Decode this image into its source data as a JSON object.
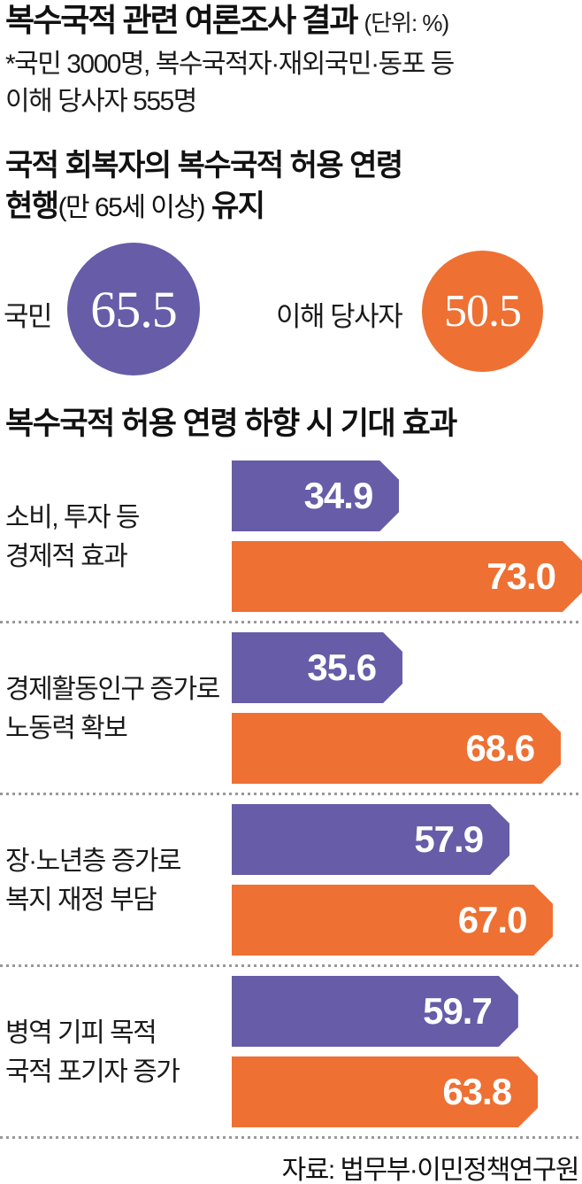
{
  "title": {
    "text": "복수국적 관련 여론조사 결과",
    "unit": "(단위: %)"
  },
  "subtitle": {
    "line1": "*국민 3000명, 복수국적자·재외국민·동포 등",
    "line2": "이해 당사자 555명"
  },
  "section1": {
    "heading_line1": "국적 회복자의 복수국적 허용 연령",
    "heading_line2_bold1": "현행",
    "heading_line2_paren": "(만 65세 이상)",
    "heading_line2_bold2": "유지"
  },
  "section2": {
    "heading": "복수국적 허용 연령 하향 시 기대 효과"
  },
  "source": "자료: 법무부·이민정책연구원",
  "colors": {
    "purple": "#665CA8",
    "orange": "#EE7033",
    "text": "#141414",
    "dots": "#999999"
  },
  "chart_data": [
    {
      "type": "bar",
      "variant": "proportional-circles",
      "title": "국적 회복자의 복수국적 허용 연령 현행(만 65세 이상) 유지",
      "categories": [
        "국민",
        "이해 당사자"
      ],
      "values": [
        65.5,
        50.5
      ],
      "unit": "%",
      "colors": [
        "#665CA8",
        "#EE7033"
      ],
      "legend": "none",
      "grid": false
    },
    {
      "type": "bar",
      "orientation": "horizontal",
      "title": "복수국적 허용 연령 하향 시 기대 효과",
      "categories": [
        "소비, 투자 등 경제적 효과",
        "경제활동인구 증가로 노동력 확보",
        "장·노년층 증가로 복지 재정 부담",
        "병역 기피 목적 국적 포기자 증가"
      ],
      "category_lines": [
        [
          "소비, 투자 등",
          "경제적 효과"
        ],
        [
          "경제활동인구 증가로",
          "노동력 확보"
        ],
        [
          "장·노년층 증가로",
          "복지 재정 부담"
        ],
        [
          "병역 기피 목적",
          "국적 포기자 증가"
        ]
      ],
      "series": [
        {
          "name": "국민",
          "color": "#665CA8",
          "values": [
            34.9,
            35.6,
            57.9,
            59.7
          ]
        },
        {
          "name": "이해 당사자",
          "color": "#EE7033",
          "values": [
            73.0,
            68.6,
            67.0,
            63.8
          ]
        }
      ],
      "xlim": [
        0,
        73.0
      ],
      "unit": "%",
      "value_labels": "inside-right",
      "grid": false,
      "legend": "none"
    }
  ]
}
